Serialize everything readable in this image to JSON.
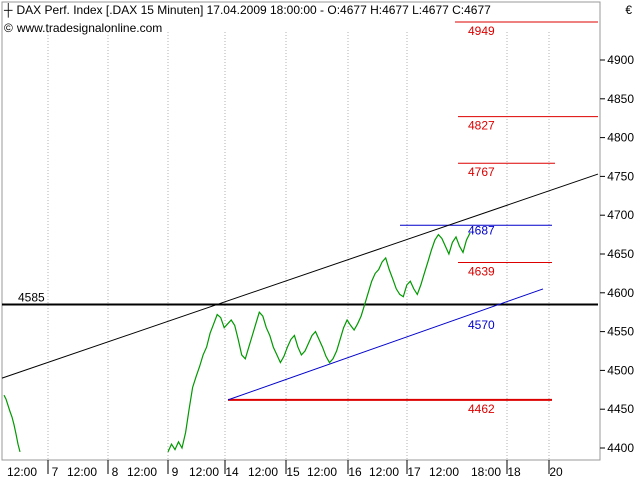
{
  "header": {
    "title": "DAX Perf. Index [.DAX  15 Minuten] 17.04.2009 18:00:00 - O:4677 H:4677 L:4677 C:4677",
    "source": "www.tradesignalonline.com",
    "currency": "€",
    "title_icon": "candle-icon",
    "source_icon": "copyright-icon"
  },
  "colors": {
    "price": "#009900",
    "resistance": "#dd0000",
    "support_line": "#000000",
    "blue_levels": "#0000cc",
    "grid": "#b0b0b0",
    "axis_text": "#000000"
  },
  "chart_data": {
    "type": "line",
    "title": "DAX Perf. Index [.DAX  15 Minuten]",
    "ylim": [
      4385,
      4980
    ],
    "y_ticks": [
      4400,
      4450,
      4500,
      4550,
      4600,
      4650,
      4700,
      4750,
      4800,
      4850,
      4900
    ],
    "x_ticks": [
      "12:00",
      "7",
      "12:00",
      "8",
      "12:00",
      "9",
      "12:00",
      "14",
      "12:00",
      "15",
      "12:00",
      "16",
      "12:00",
      "17",
      "12:00",
      "18:00",
      "18",
      "20"
    ],
    "grid": "vertical dotted",
    "series": [
      {
        "color": "green",
        "segments": [
          {
            "day": "6",
            "values": [
              4468,
              4463,
              4455,
              4447,
              4440,
              4430,
              4418,
              4405,
              4395
            ]
          },
          {
            "day": "9",
            "values": [
              4395,
              4405,
              4398,
              4408,
              4400,
              4420,
              4450,
              4478,
              4492,
              4505,
              4520,
              4530,
              4548,
              4560,
              4572,
              4568,
              4555,
              4560,
              4565,
              4558,
              4540,
              4520,
              4515,
              4530,
              4545,
              4560,
              4575,
              4570,
              4555,
              4545,
              4530,
              4520,
              4510,
              4518,
              4530,
              4540,
              4545,
              4530,
              4520,
              4525,
              4535,
              4545,
              4550,
              4540,
              4530,
              4518,
              4510,
              4515,
              4525,
              4540,
              4555,
              4565,
              4558,
              4552,
              4560,
              4570,
              4585,
              4600,
              4615,
              4625,
              4630,
              4640,
              4645,
              4630,
              4618,
              4605,
              4598,
              4595,
              4610,
              4615,
              4605,
              4598,
              4610,
              4625,
              4640,
              4655,
              4668,
              4675,
              4670,
              4660,
              4650,
              4665,
              4672,
              4660,
              4652,
              4668,
              4677
            ]
          }
        ]
      }
    ],
    "levels": [
      {
        "value": 4949,
        "label": "4949",
        "color": "red"
      },
      {
        "value": 4827,
        "label": "4827",
        "color": "red"
      },
      {
        "value": 4767,
        "label": "4767",
        "color": "red"
      },
      {
        "value": 4687,
        "label": "4687",
        "color": "blue"
      },
      {
        "value": 4639,
        "label": "4639",
        "color": "red"
      },
      {
        "value": 4585,
        "label": "4585",
        "color": "black"
      },
      {
        "value": 4570,
        "label": "4570",
        "color": "blue"
      },
      {
        "value": 4462,
        "label": "4462",
        "color": "red"
      }
    ]
  }
}
